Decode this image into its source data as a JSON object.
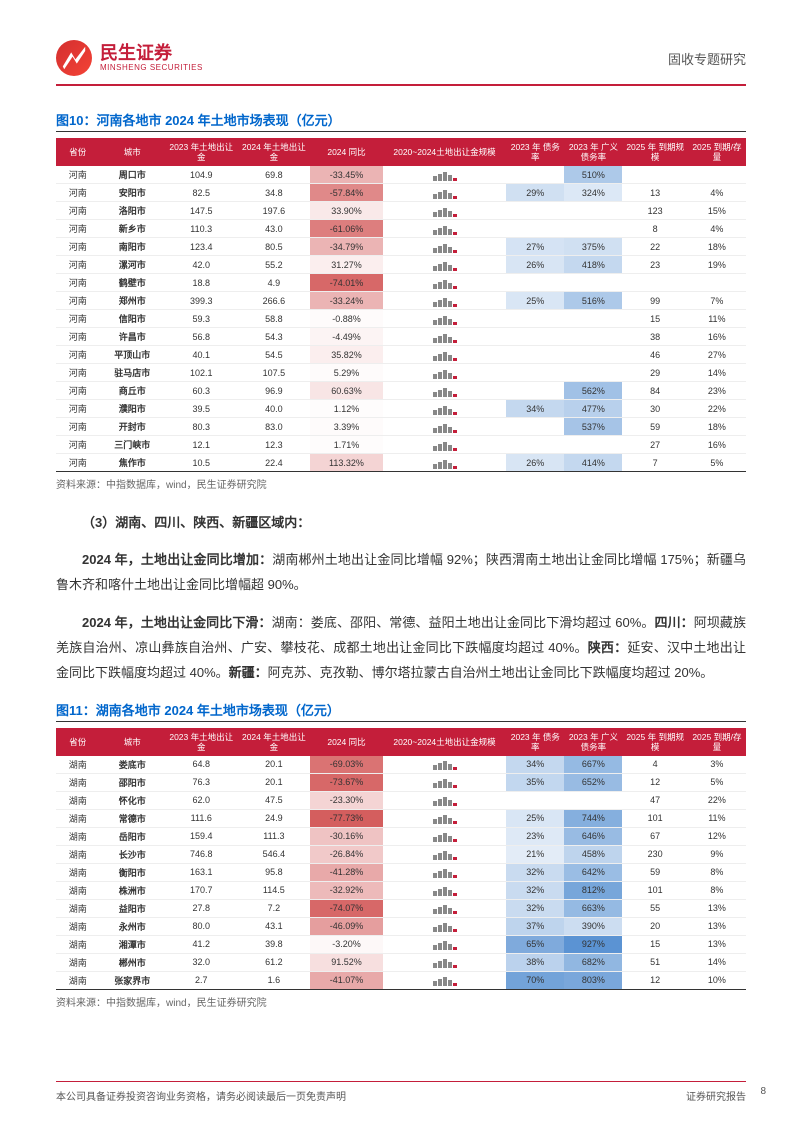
{
  "header": {
    "company_cn": "民生证券",
    "company_en": "MINSHENG SECURITIES",
    "doc_type": "固收专题研究"
  },
  "figure10": {
    "title": "图10：河南各地市 2024 年土地市场表现（亿元）",
    "columns": [
      "省份",
      "城市",
      "2023 年土地出让金",
      "2024 年土地出让金",
      "2024 同比",
      "2020~2024土地出让金规模",
      "2023 年 债务率",
      "2023 年 广义债务率",
      "2025 年 到期规模",
      "2025 到期/存量"
    ],
    "rows": [
      {
        "prov": "河南",
        "city": "周口市",
        "v23": "104.9",
        "v24": "69.8",
        "yoy": "-33.45%",
        "yoy_a": 0.35,
        "debt": "",
        "debt_a": 0,
        "wide": "510%",
        "wide_a": 0.35,
        "due": "",
        "ratio": ""
      },
      {
        "prov": "河南",
        "city": "安阳市",
        "v23": "82.5",
        "v24": "34.8",
        "yoy": "-57.84%",
        "yoy_a": 0.55,
        "debt": "29%",
        "debt_a": 0.2,
        "wide": "324%",
        "wide_a": 0.15,
        "due": "13",
        "ratio": "4%"
      },
      {
        "prov": "河南",
        "city": "洛阳市",
        "v23": "147.5",
        "v24": "197.6",
        "yoy": "33.90%",
        "yoy_a": 0.1,
        "debt": "",
        "debt_a": 0,
        "wide": "",
        "wide_a": 0,
        "due": "123",
        "ratio": "15%"
      },
      {
        "prov": "河南",
        "city": "新乡市",
        "v23": "110.3",
        "v24": "43.0",
        "yoy": "-61.06%",
        "yoy_a": 0.6,
        "debt": "",
        "debt_a": 0,
        "wide": "",
        "wide_a": 0,
        "due": "8",
        "ratio": "4%"
      },
      {
        "prov": "河南",
        "city": "南阳市",
        "v23": "123.4",
        "v24": "80.5",
        "yoy": "-34.79%",
        "yoy_a": 0.35,
        "debt": "27%",
        "debt_a": 0.18,
        "wide": "375%",
        "wide_a": 0.2,
        "due": "22",
        "ratio": "18%"
      },
      {
        "prov": "河南",
        "city": "漯河市",
        "v23": "42.0",
        "v24": "55.2",
        "yoy": "31.27%",
        "yoy_a": 0.08,
        "debt": "26%",
        "debt_a": 0.17,
        "wide": "418%",
        "wide_a": 0.25,
        "due": "23",
        "ratio": "19%"
      },
      {
        "prov": "河南",
        "city": "鹤壁市",
        "v23": "18.8",
        "v24": "4.9",
        "yoy": "-74.01%",
        "yoy_a": 0.7,
        "debt": "",
        "debt_a": 0,
        "wide": "",
        "wide_a": 0,
        "due": "",
        "ratio": ""
      },
      {
        "prov": "河南",
        "city": "郑州市",
        "v23": "399.3",
        "v24": "266.6",
        "yoy": "-33.24%",
        "yoy_a": 0.35,
        "debt": "25%",
        "debt_a": 0.16,
        "wide": "516%",
        "wide_a": 0.35,
        "due": "99",
        "ratio": "7%"
      },
      {
        "prov": "河南",
        "city": "信阳市",
        "v23": "59.3",
        "v24": "58.8",
        "yoy": "-0.88%",
        "yoy_a": 0.02,
        "debt": "",
        "debt_a": 0,
        "wide": "",
        "wide_a": 0,
        "due": "15",
        "ratio": "11%"
      },
      {
        "prov": "河南",
        "city": "许昌市",
        "v23": "56.8",
        "v24": "54.3",
        "yoy": "-4.49%",
        "yoy_a": 0.05,
        "debt": "",
        "debt_a": 0,
        "wide": "",
        "wide_a": 0,
        "due": "38",
        "ratio": "16%"
      },
      {
        "prov": "河南",
        "city": "平顶山市",
        "v23": "40.1",
        "v24": "54.5",
        "yoy": "35.82%",
        "yoy_a": 0.08,
        "debt": "",
        "debt_a": 0,
        "wide": "",
        "wide_a": 0,
        "due": "46",
        "ratio": "27%"
      },
      {
        "prov": "河南",
        "city": "驻马店市",
        "v23": "102.1",
        "v24": "107.5",
        "yoy": "5.29%",
        "yoy_a": 0.02,
        "debt": "",
        "debt_a": 0,
        "wide": "",
        "wide_a": 0,
        "due": "29",
        "ratio": "14%"
      },
      {
        "prov": "河南",
        "city": "商丘市",
        "v23": "60.3",
        "v24": "96.9",
        "yoy": "60.63%",
        "yoy_a": 0.12,
        "debt": "",
        "debt_a": 0,
        "wide": "562%",
        "wide_a": 0.4,
        "due": "84",
        "ratio": "23%"
      },
      {
        "prov": "河南",
        "city": "濮阳市",
        "v23": "39.5",
        "v24": "40.0",
        "yoy": "1.12%",
        "yoy_a": 0.01,
        "debt": "34%",
        "debt_a": 0.25,
        "wide": "477%",
        "wide_a": 0.3,
        "due": "30",
        "ratio": "22%"
      },
      {
        "prov": "河南",
        "city": "开封市",
        "v23": "80.3",
        "v24": "83.0",
        "yoy": "3.39%",
        "yoy_a": 0.02,
        "debt": "",
        "debt_a": 0,
        "wide": "537%",
        "wide_a": 0.38,
        "due": "59",
        "ratio": "18%"
      },
      {
        "prov": "河南",
        "city": "三门峡市",
        "v23": "12.1",
        "v24": "12.3",
        "yoy": "1.71%",
        "yoy_a": 0.01,
        "debt": "",
        "debt_a": 0,
        "wide": "",
        "wide_a": 0,
        "due": "27",
        "ratio": "16%"
      },
      {
        "prov": "河南",
        "city": "焦作市",
        "v23": "10.5",
        "v24": "22.4",
        "yoy": "113.32%",
        "yoy_a": 0.2,
        "debt": "26%",
        "debt_a": 0.17,
        "wide": "414%",
        "wide_a": 0.25,
        "due": "7",
        "ratio": "5%"
      }
    ],
    "source": "资料来源：中指数据库，wind，民生证券研究院"
  },
  "text": {
    "section": "（3）湖南、四川、陕西、新疆区域内：",
    "p1_bold": "2024 年，土地出让金同比增加：",
    "p1_rest": "湖南郴州土地出让金同比增幅 92%；陕西渭南土地出让金同比增幅 175%；新疆乌鲁木齐和喀什土地出让金同比增幅超 90%。",
    "p2_bold": "2024 年，土地出让金同比下滑：",
    "p2_rest_a": "湖南：娄底、邵阳、常德、益阳土地出让金同比下滑均超过 60%。",
    "p2_b_bold": "四川：",
    "p2_rest_b": "阿坝藏族羌族自治州、凉山彝族自治州、广安、攀枝花、成都土地出让金同比下跌幅度均超过 40%。",
    "p2_c_bold": "陕西：",
    "p2_rest_c": "延安、汉中土地出让金同比下跌幅度均超过 40%。",
    "p2_d_bold": "新疆：",
    "p2_rest_d": "阿克苏、克孜勒、博尔塔拉蒙古自治州土地出让金同比下跌幅度均超过 20%。"
  },
  "figure11": {
    "title": "图11：湖南各地市 2024 年土地市场表现（亿元）",
    "rows": [
      {
        "prov": "湖南",
        "city": "娄底市",
        "v23": "64.8",
        "v24": "20.1",
        "yoy": "-69.03%",
        "yoy_a": 0.65,
        "debt": "34%",
        "debt_a": 0.25,
        "wide": "667%",
        "wide_a": 0.45,
        "due": "4",
        "ratio": "3%"
      },
      {
        "prov": "湖南",
        "city": "邵阳市",
        "v23": "76.3",
        "v24": "20.1",
        "yoy": "-73.67%",
        "yoy_a": 0.7,
        "debt": "35%",
        "debt_a": 0.26,
        "wide": "652%",
        "wide_a": 0.44,
        "due": "12",
        "ratio": "5%"
      },
      {
        "prov": "湖南",
        "city": "怀化市",
        "v23": "62.0",
        "v24": "47.5",
        "yoy": "-23.30%",
        "yoy_a": 0.2,
        "debt": "",
        "debt_a": 0,
        "wide": "",
        "wide_a": 0,
        "due": "47",
        "ratio": "22%"
      },
      {
        "prov": "湖南",
        "city": "常德市",
        "v23": "111.6",
        "v24": "24.9",
        "yoy": "-77.73%",
        "yoy_a": 0.75,
        "debt": "25%",
        "debt_a": 0.16,
        "wide": "744%",
        "wide_a": 0.52,
        "due": "101",
        "ratio": "11%"
      },
      {
        "prov": "湖南",
        "city": "岳阳市",
        "v23": "159.4",
        "v24": "111.3",
        "yoy": "-30.16%",
        "yoy_a": 0.28,
        "debt": "23%",
        "debt_a": 0.14,
        "wide": "646%",
        "wide_a": 0.44,
        "due": "67",
        "ratio": "12%"
      },
      {
        "prov": "湖南",
        "city": "长沙市",
        "v23": "746.8",
        "v24": "546.4",
        "yoy": "-26.84%",
        "yoy_a": 0.25,
        "debt": "21%",
        "debt_a": 0.12,
        "wide": "458%",
        "wide_a": 0.28,
        "due": "230",
        "ratio": "9%"
      },
      {
        "prov": "湖南",
        "city": "衡阳市",
        "v23": "163.1",
        "v24": "95.8",
        "yoy": "-41.28%",
        "yoy_a": 0.4,
        "debt": "32%",
        "debt_a": 0.23,
        "wide": "642%",
        "wide_a": 0.43,
        "due": "59",
        "ratio": "8%"
      },
      {
        "prov": "湖南",
        "city": "株洲市",
        "v23": "170.7",
        "v24": "114.5",
        "yoy": "-32.92%",
        "yoy_a": 0.32,
        "debt": "32%",
        "debt_a": 0.23,
        "wide": "812%",
        "wide_a": 0.58,
        "due": "101",
        "ratio": "8%"
      },
      {
        "prov": "湖南",
        "city": "益阳市",
        "v23": "27.8",
        "v24": "7.2",
        "yoy": "-74.07%",
        "yoy_a": 0.7,
        "debt": "32%",
        "debt_a": 0.23,
        "wide": "663%",
        "wide_a": 0.45,
        "due": "55",
        "ratio": "13%"
      },
      {
        "prov": "湖南",
        "city": "永州市",
        "v23": "80.0",
        "v24": "43.1",
        "yoy": "-46.09%",
        "yoy_a": 0.45,
        "debt": "37%",
        "debt_a": 0.28,
        "wide": "390%",
        "wide_a": 0.22,
        "due": "20",
        "ratio": "13%"
      },
      {
        "prov": "湖南",
        "city": "湘潭市",
        "v23": "41.2",
        "v24": "39.8",
        "yoy": "-3.20%",
        "yoy_a": 0.03,
        "debt": "65%",
        "debt_a": 0.55,
        "wide": "927%",
        "wide_a": 0.7,
        "due": "15",
        "ratio": "13%"
      },
      {
        "prov": "湖南",
        "city": "郴州市",
        "v23": "32.0",
        "v24": "61.2",
        "yoy": "91.52%",
        "yoy_a": 0.15,
        "debt": "38%",
        "debt_a": 0.29,
        "wide": "682%",
        "wide_a": 0.47,
        "due": "51",
        "ratio": "14%"
      },
      {
        "prov": "湖南",
        "city": "张家界市",
        "v23": "2.7",
        "v24": "1.6",
        "yoy": "-41.07%",
        "yoy_a": 0.4,
        "debt": "70%",
        "debt_a": 0.6,
        "wide": "803%",
        "wide_a": 0.57,
        "due": "12",
        "ratio": "10%"
      }
    ],
    "source": "资料来源：中指数据库，wind，民生证券研究院"
  },
  "footer": {
    "left": "本公司具备证券投资咨询业务资格，请务必阅读最后一页免责声明",
    "right": "证券研究报告",
    "page": "8"
  },
  "spark": {
    "bars": [
      5,
      7,
      9,
      6,
      3
    ]
  }
}
